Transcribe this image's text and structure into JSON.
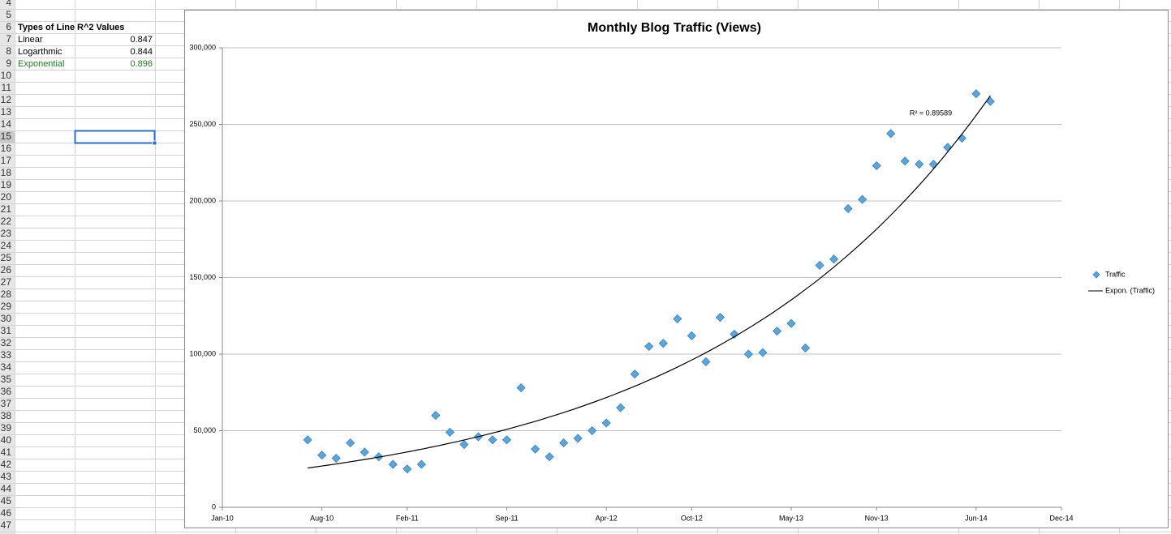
{
  "sheet": {
    "row_numbers": [
      4,
      5,
      6,
      7,
      8,
      9,
      10,
      11,
      12,
      13,
      14,
      15,
      16,
      17,
      18,
      19,
      20,
      21,
      22,
      23,
      24,
      25,
      26,
      27,
      28,
      29,
      30,
      31,
      32,
      33,
      34,
      35,
      36,
      37,
      38,
      39,
      40,
      41,
      42,
      43,
      44,
      45,
      46,
      47
    ],
    "cells": [
      [
        "Types of Line",
        "R^2 Values"
      ],
      [
        "Linear",
        0.847
      ],
      [
        "Logarthmic",
        0.844
      ],
      [
        "Exponential",
        0.896
      ]
    ]
  },
  "chart_data": {
    "type": "scatter",
    "title": "Monthly Blog Traffic (Views)",
    "x": [
      "2010-07",
      "2010-08",
      "2010-09",
      "2010-10",
      "2010-11",
      "2010-12",
      "2011-01",
      "2011-02",
      "2011-03",
      "2011-04",
      "2011-05",
      "2011-06",
      "2011-07",
      "2011-08",
      "2011-09",
      "2011-10",
      "2011-11",
      "2011-12",
      "2012-01",
      "2012-02",
      "2012-03",
      "2012-04",
      "2012-05",
      "2012-06",
      "2012-07",
      "2012-08",
      "2012-09",
      "2012-10",
      "2012-11",
      "2012-12",
      "2013-01",
      "2013-02",
      "2013-03",
      "2013-04",
      "2013-05",
      "2013-06",
      "2013-07",
      "2013-08",
      "2013-09",
      "2013-10",
      "2013-11",
      "2013-12",
      "2014-01",
      "2014-02",
      "2014-03",
      "2014-04",
      "2014-05",
      "2014-06",
      "2014-07"
    ],
    "series": [
      {
        "name": "Traffic",
        "color": "#5aa5dc",
        "values": [
          44000,
          34000,
          32000,
          42000,
          36000,
          33000,
          28000,
          25000,
          28000,
          60000,
          49000,
          41000,
          46000,
          44000,
          44000,
          78000,
          38000,
          33000,
          42000,
          45000,
          50000,
          55000,
          65000,
          87000,
          105000,
          107000,
          123000,
          112000,
          95000,
          124000,
          113000,
          100000,
          101000,
          115000,
          120000,
          104000,
          158000,
          162000,
          195000,
          201000,
          223000,
          244000,
          226000,
          224000,
          224000,
          235000,
          241000,
          270000,
          265000
        ]
      }
    ],
    "trendline": {
      "name": "Expon. (Traffic)",
      "kind": "exponential",
      "label": "R² = 0.89589",
      "color": "#000000"
    },
    "xlim": [
      "2010-01",
      "2014-12"
    ],
    "xticks": [
      {
        "value": "2010-01",
        "label": "Jan-10"
      },
      {
        "value": "2010-08",
        "label": "Aug-10"
      },
      {
        "value": "2011-02",
        "label": "Feb-11"
      },
      {
        "value": "2011-09",
        "label": "Sep-11"
      },
      {
        "value": "2012-04",
        "label": "Apr-12"
      },
      {
        "value": "2012-10",
        "label": "Oct-12"
      },
      {
        "value": "2013-05",
        "label": "May-13"
      },
      {
        "value": "2013-11",
        "label": "Nov-13"
      },
      {
        "value": "2014-06",
        "label": "Jun-14"
      },
      {
        "value": "2014-12",
        "label": "Dec-14"
      }
    ],
    "ylim": [
      0,
      300000
    ],
    "yticks": [
      0,
      {
        "value": 50000,
        "label": "50,000"
      },
      {
        "value": 100000,
        "label": "100,000"
      },
      {
        "value": 150000,
        "label": "150,000"
      },
      {
        "value": 200000,
        "label": "200,000"
      },
      {
        "value": 250000,
        "label": "250,000"
      },
      {
        "value": 300000,
        "label": "300,000"
      }
    ],
    "grid": true,
    "legend": "right"
  }
}
